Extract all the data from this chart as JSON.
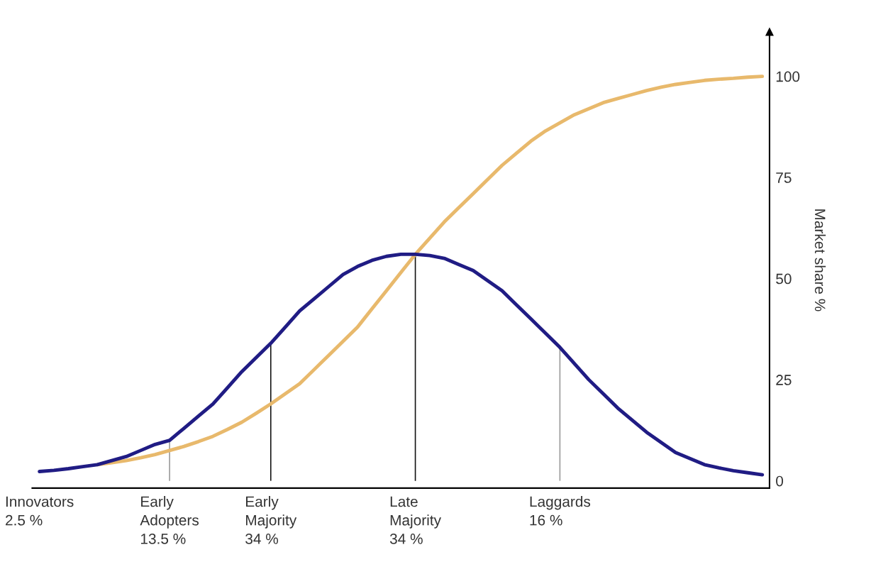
{
  "chart_data": {
    "type": "line",
    "ylabel": "Market share %",
    "categories": [
      "Innovators\n2.5 %",
      null,
      null,
      null,
      null,
      null,
      null,
      null,
      null,
      "Early\nAdopters\n13.5 %",
      null,
      null,
      null,
      null,
      null,
      null,
      "Early\nMajority\n34 %",
      null,
      null,
      null,
      null,
      null,
      null,
      null,
      null,
      null,
      "Late\nMajority\n34 %",
      null,
      null,
      null,
      null,
      null,
      null,
      null,
      null,
      null,
      "Laggards\n16 %",
      null,
      null,
      null,
      null,
      null,
      null,
      null,
      null,
      null,
      null,
      null,
      null,
      null,
      null
    ],
    "series": [
      {
        "color": "#e8b96c",
        "values": [
          null,
          null,
          null,
          null,
          4,
          4.5,
          5,
          5.7,
          6.5,
          7.5,
          8.5,
          9.7,
          11,
          12.7,
          14.5,
          16.7,
          19,
          21.5,
          24,
          27.5,
          31,
          34.5,
          38,
          42.5,
          47,
          51.5,
          56,
          60,
          64,
          67.5,
          71,
          74.5,
          78,
          81,
          84,
          86.5,
          88.5,
          90.5,
          92,
          93.5,
          94.5,
          95.5,
          96.5,
          97.3,
          98,
          98.5,
          99,
          99.3,
          99.5,
          99.8,
          100
        ]
      },
      {
        "color": "#201c84",
        "values": [
          2.3,
          2.6,
          3,
          3.5,
          4,
          5,
          6,
          7.5,
          9,
          10,
          13,
          16,
          19,
          23,
          27,
          30.5,
          34,
          38,
          42,
          45,
          48,
          51,
          53,
          54.5,
          55.5,
          56,
          56,
          55.7,
          55,
          53.5,
          52,
          49.5,
          47,
          43.5,
          40,
          36.5,
          33,
          29,
          25,
          21.5,
          18,
          15,
          12,
          9.5,
          7,
          5.5,
          4,
          3.2,
          2.5,
          2,
          1.5
        ]
      },
      {
        "type": "bar",
        "colors": [
          null,
          null,
          null,
          null,
          null,
          null,
          null,
          null,
          null,
          "#9a9a9a",
          null,
          null,
          null,
          null,
          null,
          null,
          "#111111",
          null,
          null,
          null,
          null,
          null,
          null,
          null,
          null,
          null,
          "#111111",
          null,
          null,
          null,
          null,
          null,
          null,
          null,
          null,
          null,
          "#9a9a9a",
          null,
          null,
          null,
          null,
          null,
          null,
          null,
          null,
          null,
          null,
          null,
          null,
          null,
          null
        ],
        "values": [
          null,
          null,
          null,
          null,
          null,
          null,
          null,
          null,
          null,
          10,
          null,
          null,
          null,
          null,
          null,
          null,
          34,
          null,
          null,
          null,
          null,
          null,
          null,
          null,
          null,
          null,
          56,
          null,
          null,
          null,
          null,
          null,
          null,
          null,
          null,
          null,
          33,
          null,
          null,
          null,
          null,
          null,
          null,
          null,
          null,
          null,
          null,
          null,
          null,
          null,
          null
        ]
      }
    ],
    "ylim": [
      -1.8,
      111
    ],
    "yticks": [
      0,
      25,
      50,
      75,
      100
    ],
    "grid": false,
    "legend": false
  }
}
